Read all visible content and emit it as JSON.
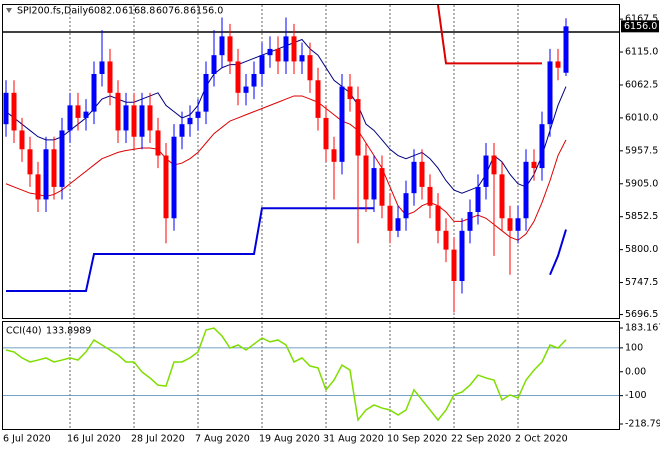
{
  "chart_data": {
    "type": "candlestick",
    "title": "SPI200.fs,Daily",
    "ohlc_labels": [
      "6082.0",
      "6168.8",
      "6076.8",
      "6156.0"
    ],
    "categories": [
      "6 Jul 2020",
      null,
      null,
      null,
      null,
      null,
      null,
      null,
      "16 Jul 2020",
      null,
      null,
      null,
      null,
      null,
      null,
      null,
      "28 Jul 2020",
      null,
      null,
      null,
      null,
      null,
      null,
      null,
      "7 Aug 2020",
      null,
      null,
      null,
      null,
      null,
      null,
      null,
      "19 Aug 2020",
      null,
      null,
      null,
      null,
      null,
      null,
      null,
      "31 Aug 2020",
      null,
      null,
      null,
      null,
      null,
      null,
      null,
      "10 Sep 2020",
      null,
      null,
      null,
      null,
      null,
      null,
      null,
      "22 Sep 2020",
      null,
      null,
      null,
      null,
      null,
      null,
      null,
      "2 Oct 2020",
      null,
      null,
      null,
      null,
      null,
      null
    ],
    "open": [
      6000,
      6050,
      5990,
      5960,
      5920,
      5880,
      5960,
      5900,
      5990,
      6030,
      6010,
      6020,
      6080,
      6100,
      6050,
      5990,
      6030,
      5980,
      6030,
      5990,
      5950,
      5850,
      5980,
      6000,
      6010,
      6020,
      6080,
      6110,
      6140,
      6100,
      6050,
      6060,
      6080,
      6110,
      6120,
      6100,
      6140,
      6100,
      6110,
      6070,
      6010,
      5960,
      5940,
      6060,
      6040,
      5950,
      5880,
      5930,
      5870,
      5830,
      5850,
      5890,
      5940,
      5900,
      5870,
      5830,
      5800,
      5750,
      5830,
      5860,
      5900,
      5950,
      5920,
      5850,
      5830,
      5850,
      5940,
      5930,
      6000,
      6100,
      6082
    ],
    "high": [
      6070,
      6070,
      6010,
      5980,
      5940,
      5980,
      5980,
      6010,
      6050,
      6050,
      6040,
      6100,
      6150,
      6120,
      6070,
      6050,
      6050,
      6050,
      6050,
      6010,
      5970,
      6000,
      6020,
      6030,
      6040,
      6100,
      6150,
      6170,
      6160,
      6120,
      6080,
      6100,
      6130,
      6140,
      6140,
      6170,
      6160,
      6130,
      6130,
      6090,
      6030,
      5980,
      6080,
      6080,
      6060,
      5970,
      5950,
      5950,
      5890,
      5870,
      5910,
      5960,
      5960,
      5920,
      5890,
      5850,
      5820,
      5850,
      5880,
      5920,
      5970,
      5970,
      5940,
      5870,
      5870,
      5960,
      5960,
      6020,
      6120,
      6120,
      6168.8
    ],
    "low": [
      5980,
      5970,
      5940,
      5900,
      5860,
      5860,
      5880,
      5880,
      5970,
      5990,
      5990,
      6000,
      6060,
      6030,
      5970,
      5970,
      5960,
      5960,
      5970,
      5930,
      5810,
      5830,
      5960,
      5980,
      5990,
      6000,
      6060,
      6090,
      6080,
      6030,
      6030,
      6040,
      6060,
      6090,
      6080,
      6080,
      6080,
      6080,
      6050,
      5990,
      5940,
      5880,
      5920,
      6020,
      5810,
      5860,
      5860,
      5850,
      5810,
      5820,
      5830,
      5870,
      5880,
      5850,
      5810,
      5780,
      5700,
      5730,
      5810,
      5840,
      5880,
      5790,
      5830,
      5760,
      5810,
      5830,
      5910,
      5910,
      5980,
      6070,
      6076.8
    ],
    "close": [
      6050,
      5990,
      5960,
      5920,
      5880,
      5960,
      5900,
      5990,
      6030,
      6010,
      6020,
      6080,
      6100,
      6050,
      5990,
      6030,
      5980,
      6030,
      5990,
      5950,
      5850,
      5980,
      6000,
      6010,
      6020,
      6080,
      6110,
      6140,
      6100,
      6050,
      6060,
      6080,
      6110,
      6120,
      6100,
      6140,
      6100,
      6110,
      6070,
      6010,
      5960,
      5940,
      6060,
      6040,
      5950,
      5880,
      5930,
      5870,
      5830,
      5850,
      5890,
      5940,
      5900,
      5870,
      5830,
      5800,
      5750,
      5830,
      5860,
      5900,
      5950,
      5920,
      5850,
      5830,
      5850,
      5940,
      5930,
      6000,
      6100,
      6090,
      6156
    ],
    "up_color": "#0000ff",
    "down_color": "#ff0000",
    "hline": 6147,
    "series": [
      {
        "color": "#000080",
        "width": 1,
        "values": [
          6020,
          6010,
          6000,
          5990,
          5980,
          5975,
          5975,
          5980,
          5990,
          6000,
          6010,
          6025,
          6040,
          6045,
          6040,
          6035,
          6035,
          6040,
          6045,
          6050,
          6030,
          6020,
          6010,
          6015,
          6030,
          6060,
          6080,
          6090,
          6095,
          6095,
          6100,
          6105,
          6110,
          6115,
          6120,
          6125,
          6130,
          6135,
          6120,
          6110,
          6090,
          6070,
          6060,
          6050,
          6030,
          6000,
          5990,
          5975,
          5960,
          5950,
          5945,
          5950,
          5955,
          5945,
          5930,
          5910,
          5895,
          5890,
          5895,
          5900,
          5920,
          5950,
          5940,
          5920,
          5905,
          5900,
          5920,
          5950,
          5990,
          6030,
          6060
        ]
      },
      {
        "color": "#dd0000",
        "width": 1,
        "values": [
          5905,
          5900,
          5895,
          5890,
          5888,
          5885,
          5888,
          5895,
          5905,
          5915,
          5925,
          5935,
          5945,
          5950,
          5955,
          5958,
          5960,
          5962,
          5962,
          5960,
          5945,
          5935,
          5938,
          5945,
          5955,
          5970,
          5985,
          5995,
          6005,
          6010,
          6015,
          6020,
          6025,
          6030,
          6035,
          6040,
          6045,
          6045,
          6040,
          6035,
          6025,
          6015,
          6005,
          6000,
          5990,
          5970,
          5950,
          5930,
          5900,
          5870,
          5855,
          5860,
          5870,
          5875,
          5870,
          5860,
          5845,
          5845,
          5850,
          5855,
          5850,
          5840,
          5830,
          5820,
          5815,
          5825,
          5845,
          5875,
          5910,
          5950,
          5975
        ]
      },
      {
        "color": "#0000dd",
        "width": 2,
        "values": [
          5734,
          5734,
          5734,
          5734,
          5734,
          5734,
          5734,
          5734,
          5734,
          5734,
          5734,
          5793,
          5793,
          5793,
          5793,
          5793,
          5793,
          5793,
          5793,
          5793,
          5793,
          5793,
          5793,
          5793,
          5793,
          5793,
          5793,
          5793,
          5793,
          5793,
          5793,
          5793,
          5866,
          5866,
          5866,
          5866,
          5866,
          5866,
          5866,
          5866,
          5866,
          5866,
          5866,
          5866,
          5866,
          5866,
          5866,
          null,
          null,
          null,
          null,
          null,
          null,
          null,
          null,
          null,
          null,
          null,
          null,
          null,
          null,
          null,
          null,
          null,
          null,
          null,
          null,
          null,
          5760,
          5790,
          5832
        ]
      },
      {
        "color": "#dd0000",
        "width": 2,
        "values": [
          null,
          null,
          null,
          null,
          null,
          null,
          null,
          null,
          null,
          null,
          null,
          null,
          null,
          null,
          null,
          null,
          null,
          null,
          null,
          null,
          null,
          null,
          null,
          null,
          null,
          null,
          null,
          null,
          null,
          null,
          null,
          null,
          null,
          null,
          null,
          null,
          null,
          null,
          null,
          null,
          null,
          null,
          null,
          null,
          null,
          null,
          null,
          null,
          null,
          null,
          null,
          null,
          null,
          null,
          6190,
          6097,
          6097,
          6097,
          6097,
          6097,
          6097,
          6097,
          6097,
          6097,
          6097,
          6097,
          6097,
          6097,
          null,
          null,
          null
        ]
      }
    ],
    "ylim": [
      5691,
      6190
    ],
    "yticks": [
      {
        "value": 6167.5,
        "label": "6167.5"
      },
      {
        "value": 6115,
        "label": "6115.0"
      },
      {
        "value": 6062.5,
        "label": "6062.5"
      },
      {
        "value": 6010,
        "label": "6010.0"
      },
      {
        "value": 5957.5,
        "label": "5957.5"
      },
      {
        "value": 5905,
        "label": "5905.0"
      },
      {
        "value": 5852.5,
        "label": "5852.5"
      },
      {
        "value": 5800,
        "label": "5800.0"
      },
      {
        "value": 5747.5,
        "label": "5747.5"
      },
      {
        "value": 5696.5,
        "label": "5696.5"
      }
    ],
    "cci": {
      "name": "CCI(40)",
      "color": "#7fdd00",
      "values": [
        91,
        83,
        58,
        41,
        49,
        58,
        41,
        49,
        58,
        49,
        83,
        133,
        112,
        91,
        70,
        41,
        41,
        -1,
        -26,
        -56,
        -60,
        41,
        41,
        58,
        83,
        175,
        183,
        150,
        99,
        112,
        91,
        116,
        141,
        125,
        133,
        112,
        41,
        58,
        24,
        16,
        -76,
        -35,
        28,
        7,
        -202,
        -160,
        -139,
        -152,
        -160,
        -181,
        -160,
        -76,
        -118,
        -160,
        -202,
        -160,
        -97,
        -85,
        -56,
        -14,
        -26,
        -35,
        -118,
        -97,
        -110,
        -35,
        7,
        41,
        112,
        99,
        133.8989
      ],
      "ylim": [
        -235.5,
        208.3
      ],
      "yticks": [
        183.1673,
        100,
        {
          "value": 0,
          "label": "0.00"
        },
        -100,
        -218.799
      ],
      "levels": [
        100,
        -100
      ],
      "level_color": "#4682b4"
    }
  }
}
